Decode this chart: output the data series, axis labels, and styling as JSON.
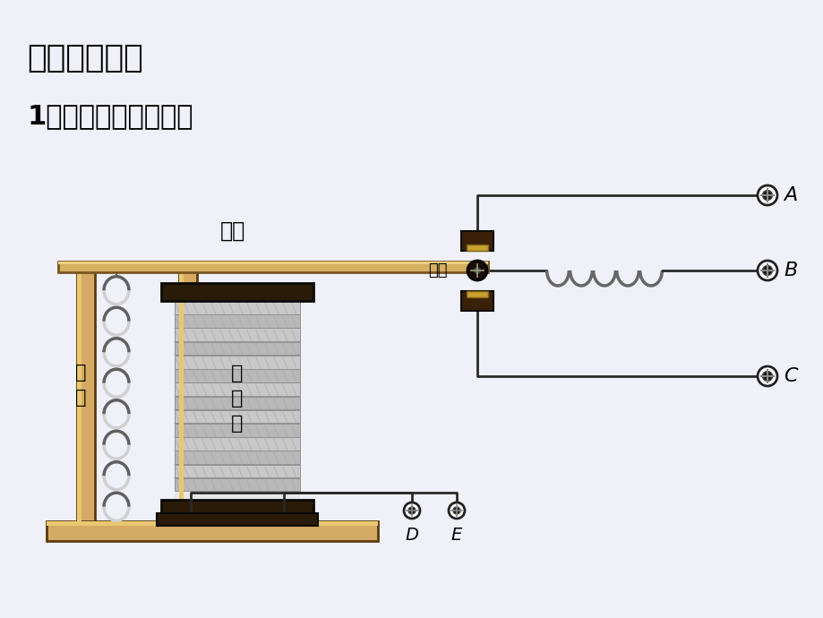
{
  "title1": "三、新课教学",
  "title2": "1、电磁继电器的构造",
  "label_hengTie": "衔铁",
  "label_tanHuang": "弹\n簧",
  "label_dianCiTie": "电\n磁\n铁",
  "label_chuDian": "触点",
  "label_A": "A",
  "label_B": "B",
  "label_C": "C",
  "label_D": "D",
  "label_E": "E",
  "bg_color": "#ffffff",
  "wood_light": "#d4aa65",
  "wood_mid": "#c49a45",
  "wood_dark": "#5a3a10",
  "arm_color": "#d4b060",
  "arm_dark": "#7a5520",
  "spool_cap_color": "#2a1a08",
  "spool_strip_light": "#d8d8d8",
  "spool_strip_dark": "#888888",
  "contact_body": "#3a2008",
  "contact_copper": "#c8a030",
  "pivot_color": "#1a0e04",
  "spring_color": "#b0b0b0",
  "spring_dark": "#606060",
  "wire_color": "#2a2a2a",
  "coil_color": "#888888",
  "terminal_bg": "#ffffff",
  "bg_gradient": "#eeeeff"
}
